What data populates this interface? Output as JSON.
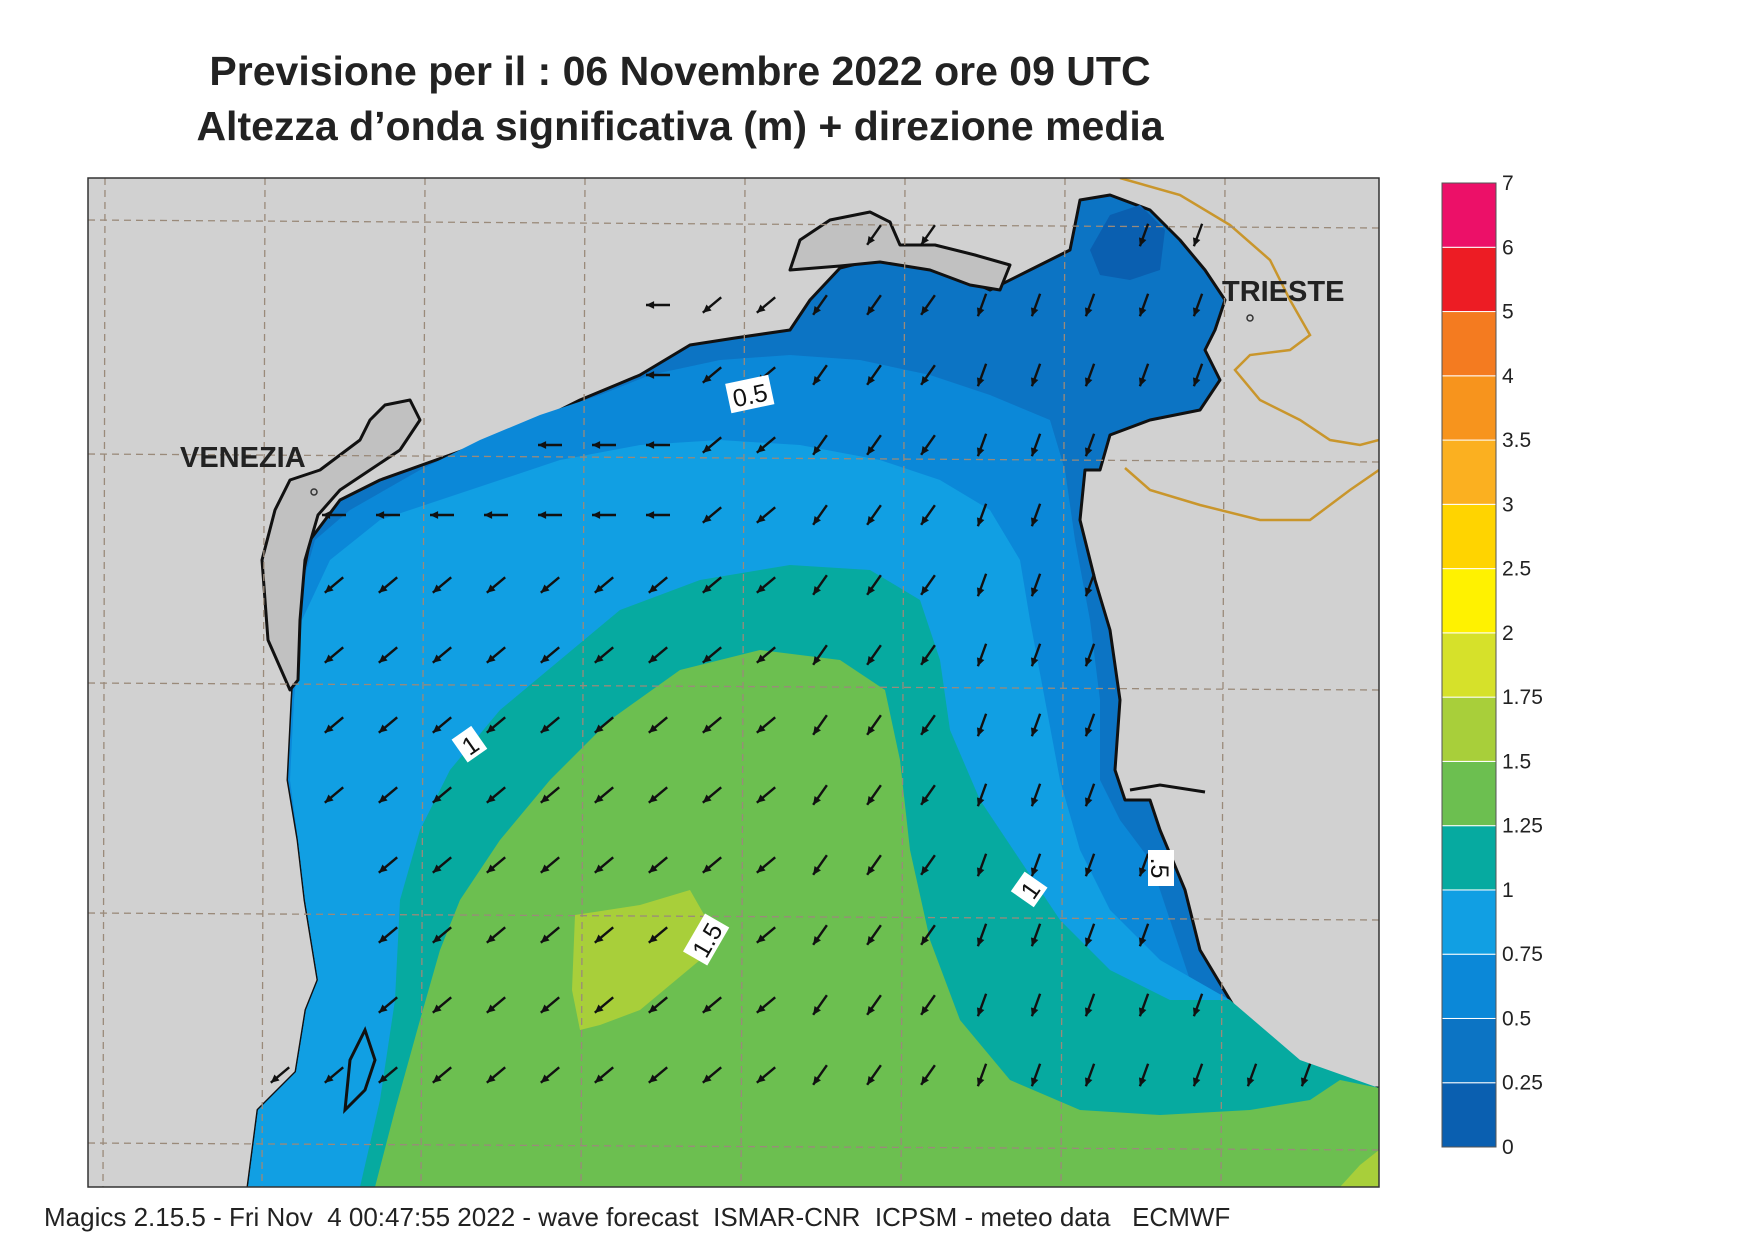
{
  "title": {
    "line1": "Previsione per il  :  06 Novembre  2022   ore 09 UTC",
    "line2": "Altezza d’onda significativa (m) + direzione media"
  },
  "cities": [
    {
      "name": "VENEZIA"
    },
    {
      "name": "TRIESTE"
    }
  ],
  "contour_labels": [
    "0.5",
    "1",
    "1",
    "1.5",
    ".5"
  ],
  "colorbar": {
    "labels": [
      "0",
      "0.25",
      "0.5",
      "0.75",
      "1",
      "1.25",
      "1.5",
      "1.75",
      "2",
      "2.5",
      "3",
      "3.5",
      "4",
      "5",
      "6",
      "7"
    ],
    "colors": [
      "#0a5fb0",
      "#0c74c4",
      "#0b88d8",
      "#119fe3",
      "#06aaa0",
      "#6cbf50",
      "#a8cf3a",
      "#d6e12a",
      "#fff200",
      "#ffd400",
      "#fbb020",
      "#f7941d",
      "#f47b20",
      "#ed1c24",
      "#ec1068"
    ]
  },
  "colors": {
    "land": "#d1d1d1",
    "lagoon": "#c1c1c1",
    "border": "#c9962c",
    "grid": "#9a8a7a",
    "arrow": "#111111"
  },
  "wave_direction": "SW",
  "footer": "Magics 2.15.5 - Fri Nov  4 00:47:55 2022 - wave forecast  ISMAR-CNR  ICPSM - meteo data   ECMWF"
}
